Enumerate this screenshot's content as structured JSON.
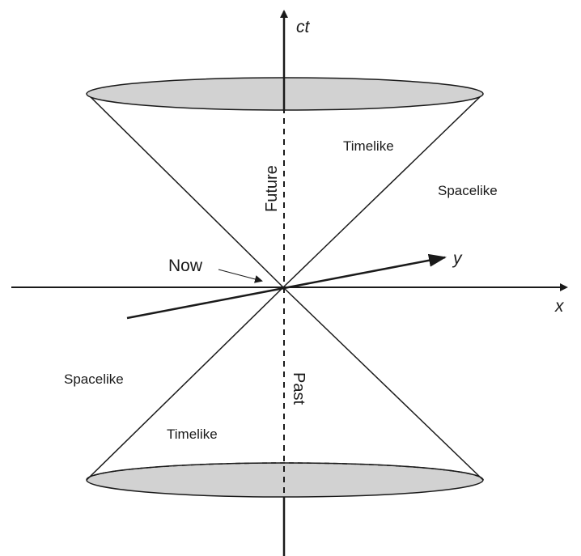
{
  "axes": {
    "time_axis_label": "ct",
    "x_axis_label": "x",
    "y_axis_label": "y"
  },
  "labels": {
    "future": "Future",
    "past": "Past",
    "now": "Now",
    "timelike_upper": "Timelike",
    "timelike_lower": "Timelike",
    "spacelike_upper_right": "Spacelike",
    "spacelike_lower_left": "Spacelike"
  },
  "colors": {
    "cone_fill": "#d2d2d2",
    "line": "#1a1a1a",
    "background": "#ffffff"
  }
}
